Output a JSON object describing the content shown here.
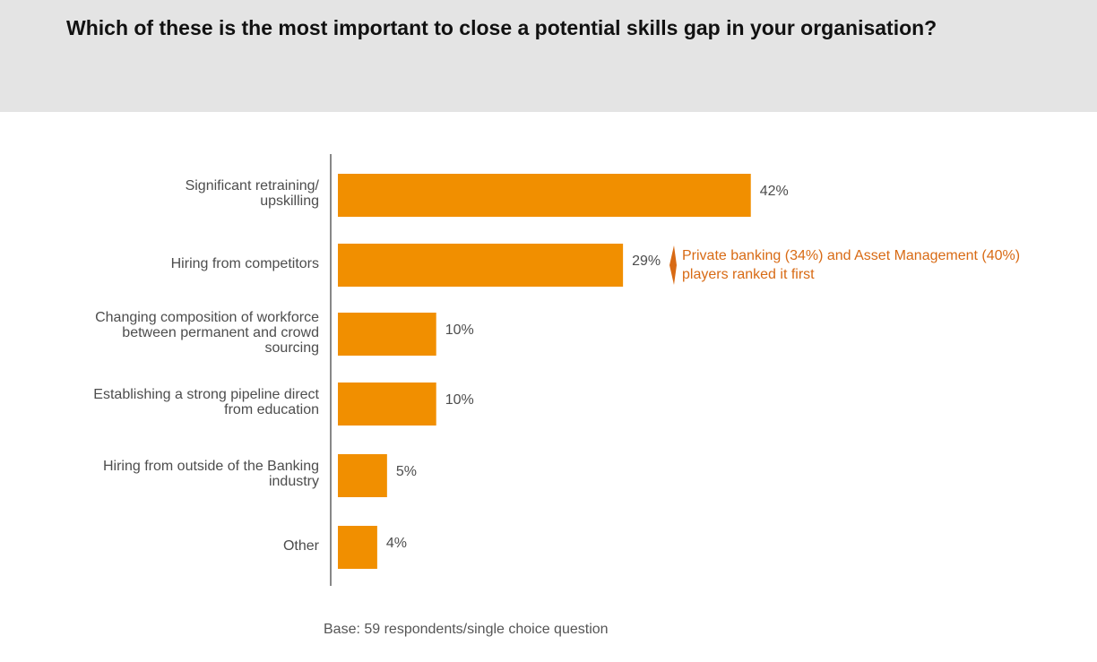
{
  "title": "Which of these is the most important to close a potential skills gap in your organisation?",
  "colors": {
    "bar": "#f18f00",
    "annotation": "#d86a14",
    "axis": "#888888",
    "header_bg": "#e4e4e4"
  },
  "chart_data": {
    "type": "bar",
    "orientation": "horizontal",
    "categories": [
      "Significant retraining/ upskilling",
      "Hiring from competitors",
      "Changing composition of workforce between permanent and crowd sourcing",
      "Establishing a strong pipeline direct from education",
      "Hiring from outside of the Banking industry",
      "Other"
    ],
    "category_lines": [
      [
        "Significant retraining/",
        "upskilling"
      ],
      [
        "Hiring from competitors"
      ],
      [
        "Changing composition of workforce",
        "between permanent and crowd",
        "sourcing"
      ],
      [
        "Establishing a strong pipeline direct",
        "from education"
      ],
      [
        "Hiring from outside of the Banking",
        "industry"
      ],
      [
        "Other"
      ]
    ],
    "values": [
      42,
      29,
      10,
      10,
      5,
      4
    ],
    "value_labels": [
      "42%",
      "29%",
      "10%",
      "10%",
      "5%",
      "4%"
    ],
    "unit": "%",
    "grid": false,
    "annotation": {
      "category_index": 1,
      "text": "Private banking (34%) and Asset Management (40%) players ranked it first"
    }
  },
  "footnote": "Base: 59 respondents/single choice question"
}
